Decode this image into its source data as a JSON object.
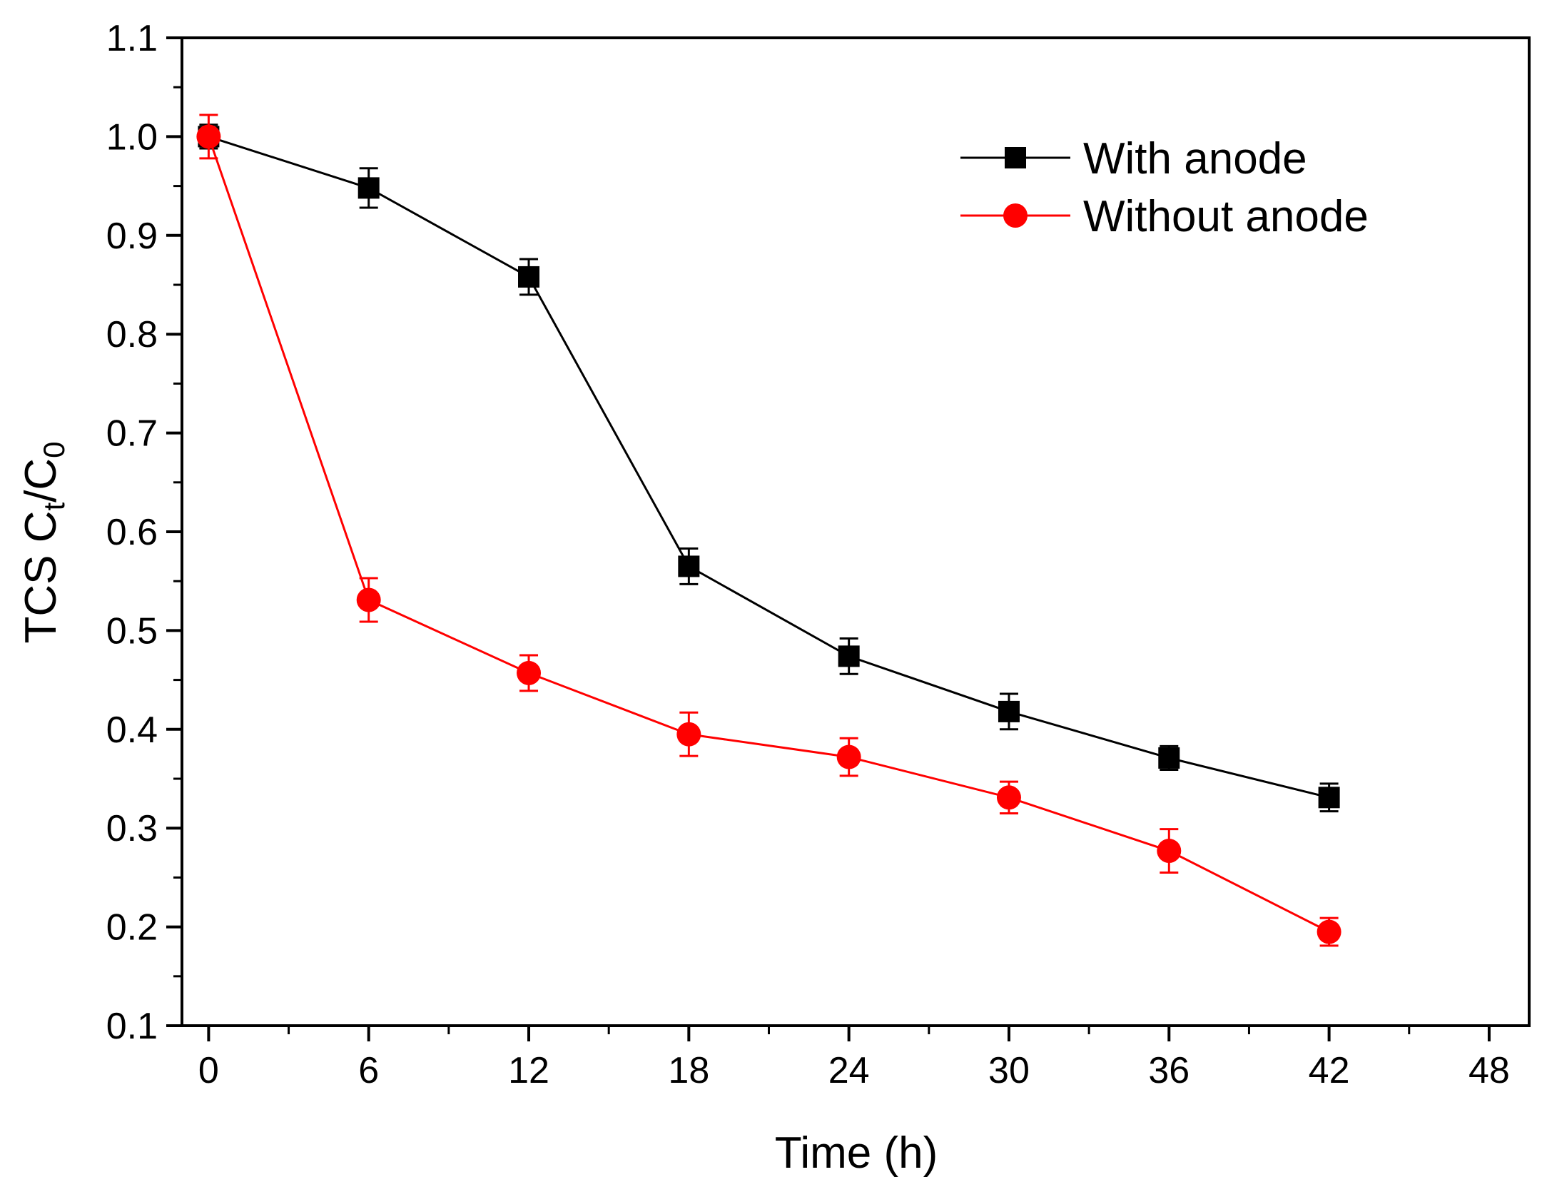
{
  "chart_data": {
    "type": "line",
    "title": "",
    "xlabel": "Time (h)",
    "ylabel": {
      "prefix": "TCS C",
      "sub1": "t",
      "middle": "/C",
      "sub2": "0"
    },
    "xlim": [
      -1,
      49.5
    ],
    "ylim": [
      0.1,
      1.1
    ],
    "xticks": [
      0,
      6,
      12,
      18,
      24,
      30,
      36,
      42,
      48
    ],
    "xtick_labels": [
      "0",
      "6",
      "12",
      "18",
      "24",
      "30",
      "36",
      "42",
      "48"
    ],
    "yticks": [
      0.1,
      0.2,
      0.3,
      0.4,
      0.5,
      0.6,
      0.7,
      0.8,
      0.9,
      1.0,
      1.1
    ],
    "ytick_labels": [
      "0.1",
      "0.2",
      "0.3",
      "0.4",
      "0.5",
      "0.6",
      "0.7",
      "0.8",
      "0.9",
      "1.0",
      "1.1"
    ],
    "grid": false,
    "legend_position": "top-right",
    "series": [
      {
        "name": "With anode",
        "color": "#000000",
        "marker": "square",
        "x": [
          0,
          6,
          12,
          18,
          24,
          30,
          36,
          42
        ],
        "y": [
          1.0,
          0.948,
          0.858,
          0.565,
          0.474,
          0.418,
          0.371,
          0.331
        ],
        "err": [
          0.012,
          0.02,
          0.018,
          0.018,
          0.018,
          0.018,
          0.012,
          0.014
        ]
      },
      {
        "name": "Without anode",
        "color": "#ff0000",
        "marker": "circle",
        "x": [
          0,
          6,
          12,
          18,
          24,
          30,
          36,
          42
        ],
        "y": [
          1.0,
          0.531,
          0.457,
          0.395,
          0.372,
          0.331,
          0.277,
          0.195
        ],
        "err": [
          0.022,
          0.022,
          0.018,
          0.022,
          0.019,
          0.016,
          0.022,
          0.014
        ]
      }
    ]
  }
}
